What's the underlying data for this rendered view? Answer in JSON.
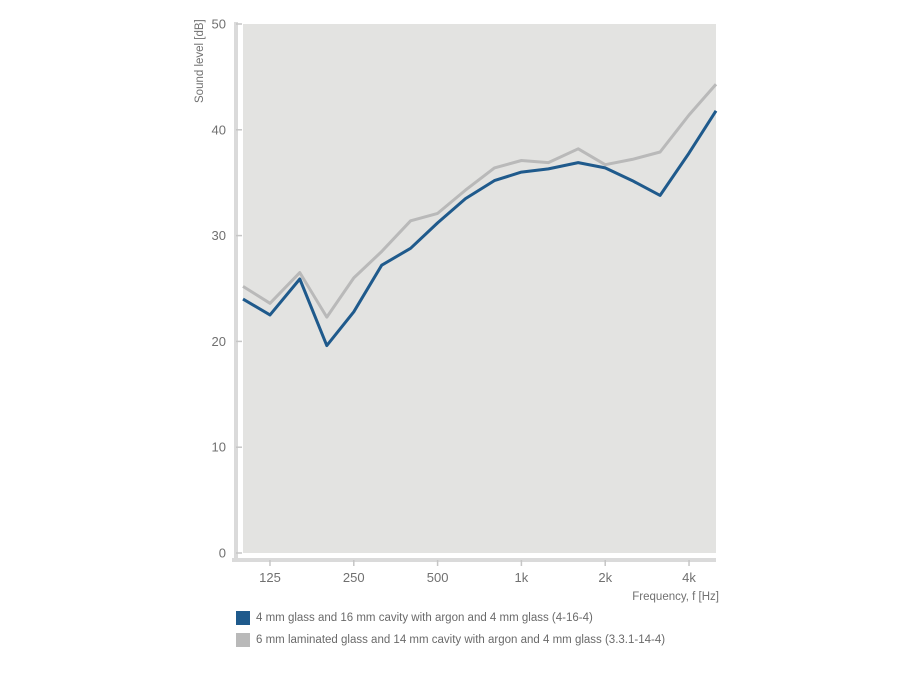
{
  "chart_data": {
    "type": "line",
    "title": "",
    "xlabel": "Frequency, f [Hz]",
    "ylabel": "Sound level [dB]",
    "ylim": [
      0,
      50
    ],
    "yticks": [
      0,
      10,
      20,
      30,
      40,
      50
    ],
    "x_scale": "log",
    "xlim": [
      100,
      5000
    ],
    "xticks": [
      {
        "value": 125,
        "label": "125"
      },
      {
        "value": 250,
        "label": "250"
      },
      {
        "value": 500,
        "label": "500"
      },
      {
        "value": 1000,
        "label": "1k"
      },
      {
        "value": 2000,
        "label": "2k"
      },
      {
        "value": 4000,
        "label": "4k"
      }
    ],
    "x": [
      100,
      125,
      160,
      200,
      250,
      315,
      400,
      500,
      630,
      800,
      1000,
      1250,
      1600,
      2000,
      2500,
      3150,
      4000,
      5000
    ],
    "series": [
      {
        "name": "4 mm glass and 16 mm cavity with argon and 4 mm glass (4-16-4)",
        "color": "#1f5a8c",
        "values": [
          24.0,
          22.5,
          25.9,
          19.6,
          22.8,
          27.2,
          28.8,
          31.2,
          33.5,
          35.2,
          36.0,
          36.3,
          36.9,
          36.4,
          35.2,
          33.8,
          37.8,
          41.8
        ]
      },
      {
        "name": "6 mm laminated glass and 14 mm cavity with argon and 4 mm glass (3.3.1-14-4)",
        "color": "#b9b9b9",
        "values": [
          25.2,
          23.6,
          26.5,
          22.3,
          26.0,
          28.5,
          31.4,
          32.1,
          34.3,
          36.4,
          37.1,
          36.9,
          38.2,
          36.7,
          37.2,
          37.9,
          41.4,
          44.3
        ]
      }
    ]
  }
}
